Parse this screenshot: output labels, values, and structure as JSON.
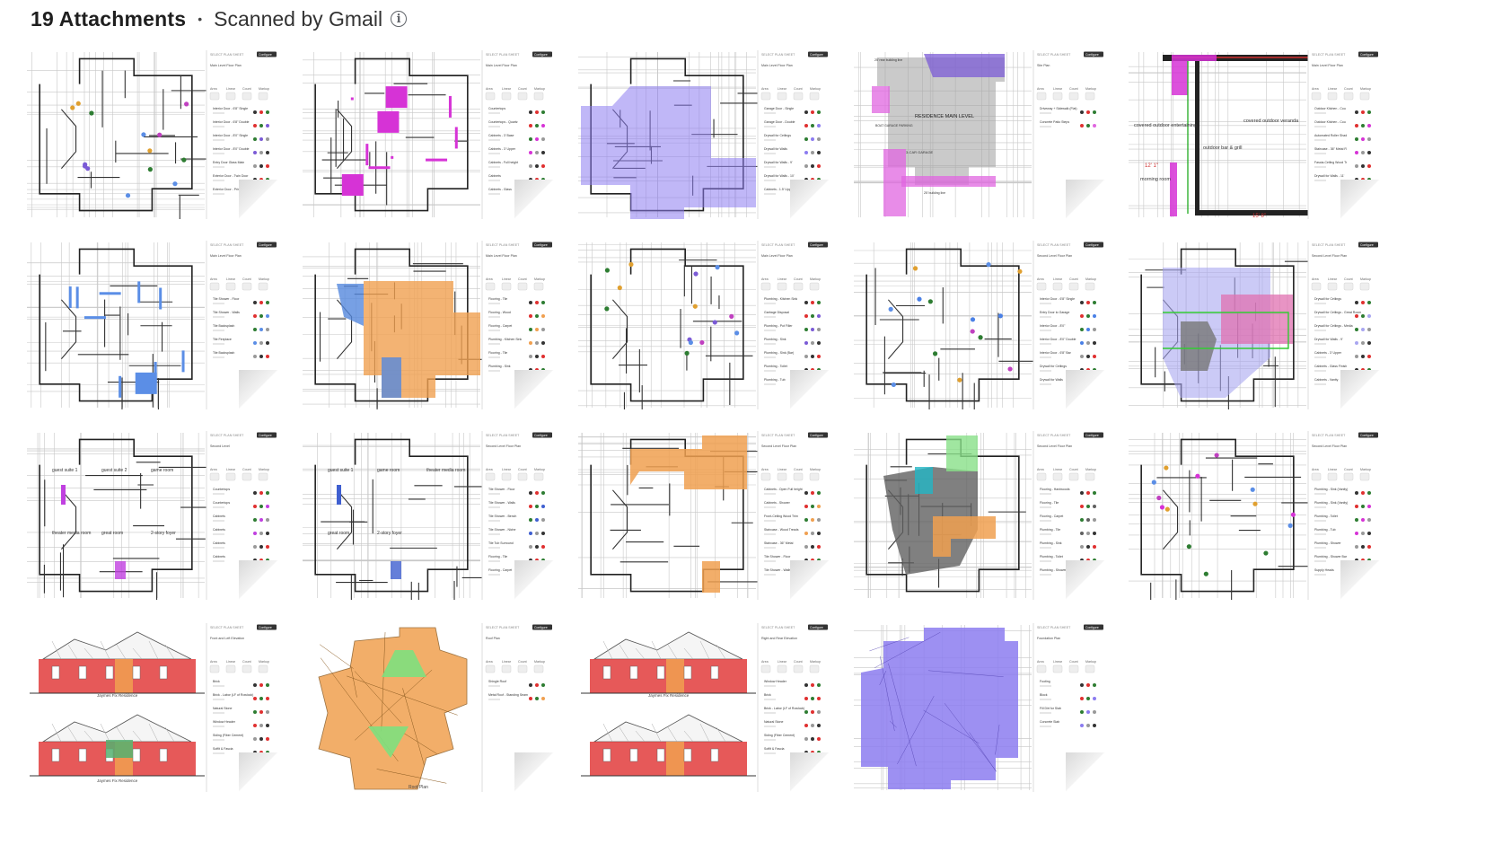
{
  "header": {
    "count_label": "19 Attachments",
    "separator": "•",
    "scanned_label": "Scanned by Gmail",
    "info_icon": "info-icon"
  },
  "attachments": [
    {
      "type": "plan",
      "sheet": "Main Level Floor Plan",
      "panel_items": [
        "Interior Door - 6'8\" Single",
        "Interior Door - 6'8\" Double",
        "Interior Door - 8'0\" Single",
        "Interior Door - 8'0\" Double",
        "Entry Door Glass Main",
        "Exterior Door - Twin Door",
        "Exterior Door - Primary"
      ],
      "highlight": "#7b5bd6",
      "style": "dots"
    },
    {
      "type": "plan",
      "sheet": "Main Level Floor Plan",
      "panel_items": [
        "Countertops",
        "Countertops - Quartz",
        "Cabinets - 3' Base",
        "Cabinets - 3' Upper",
        "Cabinets - Full height",
        "Cabinets",
        "Cabinets - Glass"
      ],
      "highlight": "#d633d6",
      "style": "lines"
    },
    {
      "type": "plan",
      "sheet": "Main Level Floor Plan",
      "panel_items": [
        "Garage Door - Single",
        "Garage Door - Double",
        "Drywall for Ceilings",
        "Drywall for Walls",
        "Drywall for Walls - 9'",
        "Drywall for Walls - 10'",
        "Cabinets - 1.5' Upper"
      ],
      "highlight": "#8c7cf0",
      "style": "fill"
    },
    {
      "type": "site",
      "sheet": "Site Plan",
      "panel_items": [
        "Driveway + Sidewalk (Flat)",
        "Concrete Patio Steps"
      ],
      "labels": [
        "RESIDENCE MAIN LEVEL",
        "3-CAR GARAGE",
        "BOAT GARAGE PARKING",
        "25' rear building line",
        "25' building line"
      ],
      "highlight": "#e066e0"
    },
    {
      "type": "detail",
      "sheet": "Main Level Floor Plan",
      "panel_items": [
        "Outdoor Kitchen - Cou",
        "Outdoor Kitchen - Cou",
        "Automated Roller Shad",
        "Staircase - 36\" Metal R",
        "Fascia-Ceiling Wood Tr",
        "Drywall for Walls - 11'"
      ],
      "labels": [
        "covered outdoor entertaining",
        "covered outdoor veranda",
        "morning room",
        "outdoor bar & grill",
        "12' 1\"",
        "15' 8\""
      ],
      "highlight": "#d633d6"
    },
    {
      "type": "plan",
      "sheet": "Main Level Floor Plan",
      "panel_items": [
        "Tile Shower - Floor",
        "Tile Shower - Walls",
        "Tile Backsplash",
        "Tile Fireplace",
        "Tile Backsplash"
      ],
      "highlight": "#5b8ee6",
      "style": "lines"
    },
    {
      "type": "plan",
      "sheet": "Main Level Floor Plan",
      "panel_items": [
        "Flooring - Tile",
        "Flooring - Wood",
        "Flooring - Carpet",
        "Plumbing - Kitchen Sink",
        "Flooring - Tile",
        "Plumbing - Sink"
      ],
      "highlight": "#f0a050",
      "style": "fill2"
    },
    {
      "type": "plan",
      "sheet": "Main Level Floor Plan",
      "panel_items": [
        "Plumbing - Kitchen Sink",
        "Garbage Disposal",
        "Plumbing - Pot Filler",
        "Plumbing - Sink",
        "Plumbing - Sink (Bar)",
        "Plumbing - Toilet",
        "Plumbing - Tub"
      ],
      "highlight": "#7b5bd6",
      "style": "dots"
    },
    {
      "type": "plan",
      "sheet": "Second Level Floor Plan",
      "panel_items": [
        "Interior Door - 6'8\" Single",
        "Entry Door to Garage",
        "Interior Door - 8'0\"",
        "Interior Door - 8'0\" Double",
        "Interior Door - 6'8\" Bar",
        "Drywall for Ceilings",
        "Drywall for Walls"
      ],
      "highlight": "#4a80e6",
      "style": "dots2"
    },
    {
      "type": "plan",
      "sheet": "Second Level Floor Plan",
      "panel_items": [
        "Drywall for Ceilings",
        "Drywall for Ceilings - Great Room",
        "Drywall for Ceilings - Media",
        "Drywall for Walls - 9'",
        "Cabinets - 3' Upper",
        "Cabinets - Glass Finish",
        "Cabinets - Vanity"
      ],
      "highlight": "#a9a6f0",
      "style": "fill3"
    },
    {
      "type": "plan2",
      "sheet": "Second Level",
      "panel_items": [
        "Countertops",
        "Countertops",
        "Cabinets",
        "Cabinets",
        "Cabinets",
        "Cabinets"
      ],
      "labels": [
        "guest suite 1",
        "guest suite 2",
        "game room",
        "theater media room",
        "great room",
        "2-story foyer"
      ],
      "highlight": "#c040e0"
    },
    {
      "type": "plan2",
      "sheet": "Second Level Floor Plan",
      "panel_items": [
        "Tile Shower - Floor",
        "Tile Shower - Walls",
        "Tile Shower - Bench",
        "Tile Shower - Niche",
        "Tile Tub Surround",
        "Flooring - Tile",
        "Flooring - Carpet"
      ],
      "labels": [
        "guest suite 1",
        "game room",
        "theater media room",
        "great room",
        "2-story foyer"
      ],
      "highlight": "#3f5fd0"
    },
    {
      "type": "plan",
      "sheet": "Second Level Floor Plan",
      "panel_items": [
        "Cabinets - Open Full height",
        "Cabinets - Shower",
        "Front-Ceiling Wood Trim",
        "Staircase - Wood Treads",
        "Staircase - 36\" Metal",
        "Tile Shower - Floor",
        "Tile Shower - Walls"
      ],
      "highlight": "#f0a050",
      "style": "fill4"
    },
    {
      "type": "plan",
      "sheet": "Second Level Floor Plan",
      "panel_items": [
        "Flooring - Hardwoods",
        "Flooring - Tile",
        "Flooring - Carpet",
        "Plumbing - Tile",
        "Plumbing - Sink",
        "Plumbing - Toilet",
        "Plumbing - Shower"
      ],
      "highlight": "#606060",
      "style": "fill5"
    },
    {
      "type": "plan",
      "sheet": "Second Level Floor Plan",
      "panel_items": [
        "Plumbing - Sink (Vanity)",
        "Plumbing - Sink (Vanity)",
        "Plumbing - Toilet",
        "Plumbing - Tub",
        "Plumbing - Shower",
        "Plumbing - Shower Bar",
        "Supply Heads"
      ],
      "highlight": "#d633d6",
      "style": "dots"
    },
    {
      "type": "elevation",
      "sheet": "Front and Left Elevation",
      "panel_items": [
        "Brick",
        "Brick - Labor (LF of Rowlock)",
        "Natural Stone",
        "Window Header",
        "Siding (Fiber Cement)",
        "Soffit & Fascia"
      ],
      "labels": [
        "Jaymes Fix Residence",
        "Jaymes Fix Residence"
      ],
      "highlight": "#e03030"
    },
    {
      "type": "roof",
      "sheet": "Roof Plan",
      "panel_items": [
        "Shingle Roof",
        "Metal Roof - Standing Seam"
      ],
      "labels": [
        "Roof Plan"
      ],
      "highlight": "#f0a050"
    },
    {
      "type": "elevation2",
      "sheet": "Right and Rear Elevation",
      "panel_items": [
        "Window Header",
        "Brick",
        "Brick - Labor (LF of Rowlock)",
        "Natural Stone",
        "Siding (Fiber Cement)",
        "Soffit & Fascia"
      ],
      "labels": [
        "Jaymes Fix Residence"
      ],
      "highlight": "#e03030"
    },
    {
      "type": "foundation",
      "sheet": "Foundation Plan",
      "panel_items": [
        "Footing",
        "Block",
        "Fill Dirt for Slab",
        "Concrete Slab"
      ],
      "highlight": "#8c7cf0"
    }
  ]
}
